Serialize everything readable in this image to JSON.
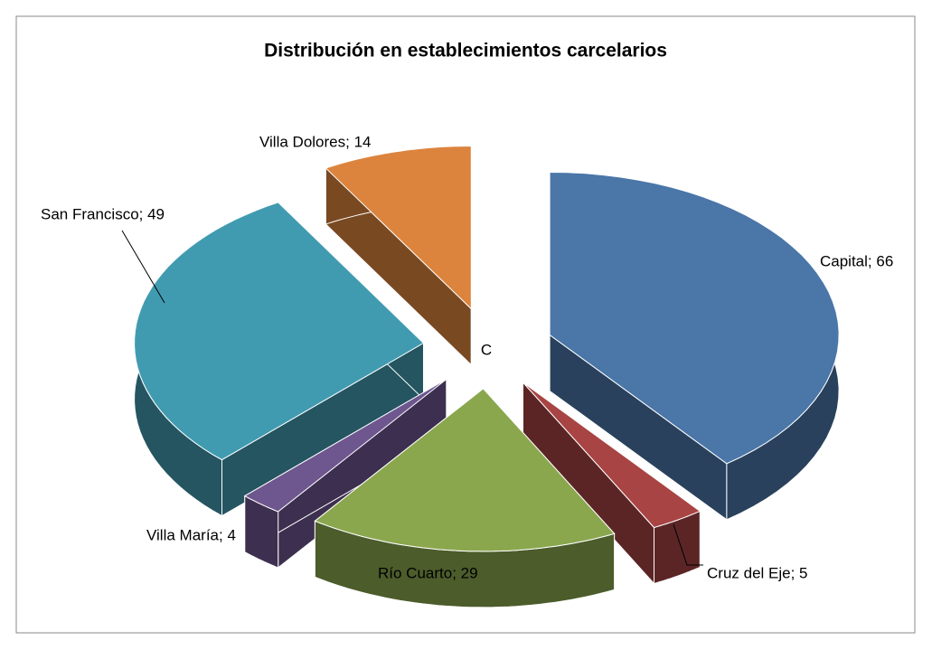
{
  "chart_data": {
    "type": "pie3d",
    "title": "Distribución en establecimientos carcelarios",
    "categories": [
      "Capital",
      "Cruz del Eje",
      "Río Cuarto",
      "Villa María",
      "San Francisco",
      "Villa Dolores"
    ],
    "values": [
      66,
      5,
      29,
      4,
      49,
      14
    ],
    "value_labels": [
      "Capital; 66",
      "Cruz del Eje; 5",
      "Río Cuarto; 29",
      "Villa María; 4",
      "San Francisco; 49",
      "Villa Dolores; 14"
    ],
    "colors": [
      "#4a76a8",
      "#a84443",
      "#8aa74e",
      "#6e568f",
      "#419bb0",
      "#dc843d"
    ],
    "annotation": "C"
  }
}
